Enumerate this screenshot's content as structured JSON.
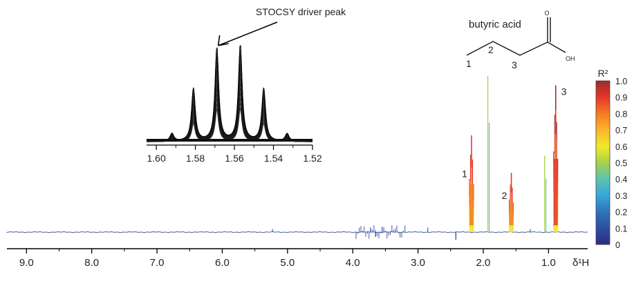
{
  "chart_data": [
    {
      "type": "line",
      "subtype": "nmr-spectrum-stocsy",
      "xlabel": "δ¹H",
      "x_reversed": true,
      "xlim": [
        9.3,
        0.4
      ],
      "x_ticks": [
        9.0,
        8.0,
        7.0,
        6.0,
        5.0,
        4.0,
        3.0,
        2.0,
        1.0
      ],
      "x_tick_labels": [
        "9.0",
        "8.0",
        "7.0",
        "6.0",
        "5.0",
        "4.0",
        "3.0",
        "2.0",
        "1.0"
      ],
      "grid": false,
      "peaks": [
        {
          "label": "1",
          "ppm": 2.18,
          "height": 0.62,
          "r2": 0.92
        },
        {
          "label": "",
          "ppm": 1.93,
          "height": 1.0,
          "r2": 0.45
        },
        {
          "label": "2",
          "ppm": 1.57,
          "height": 0.38,
          "r2": 0.92
        },
        {
          "label": "",
          "ppm": 1.06,
          "height": 0.49,
          "r2": 0.5
        },
        {
          "label": "3",
          "ppm": 0.89,
          "height": 0.94,
          "r2": 0.95
        }
      ],
      "baseline_features": [
        {
          "ppm": 5.23,
          "height": 0.02
        },
        {
          "ppm": 3.73,
          "height": 0.03
        },
        {
          "ppm": 3.65,
          "height": -0.03
        },
        {
          "ppm": 3.55,
          "height": 0.025
        },
        {
          "ppm": 2.85,
          "height": 0.03
        },
        {
          "ppm": 2.42,
          "height": -0.05
        },
        {
          "ppm": 1.28,
          "height": 0.02
        }
      ]
    },
    {
      "type": "line",
      "subtype": "nmr-inset-multiplet",
      "annotation": "STOCSY driver peak",
      "x_reversed": true,
      "xlim": [
        1.605,
        1.52
      ],
      "x_ticks": [
        1.6,
        1.58,
        1.56,
        1.54,
        1.52
      ],
      "x_tick_labels": [
        "1.60",
        "1.58",
        "1.56",
        "1.54",
        "1.52"
      ],
      "grid": false,
      "peaks": [
        {
          "ppm": 1.592,
          "height": 0.08
        },
        {
          "ppm": 1.581,
          "height": 0.55
        },
        {
          "ppm": 1.569,
          "height": 0.97
        },
        {
          "ppm": 1.557,
          "height": 1.0
        },
        {
          "ppm": 1.545,
          "height": 0.55
        },
        {
          "ppm": 1.533,
          "height": 0.08
        }
      ],
      "driver_peak_ppm": 1.569
    }
  ],
  "colorbar": {
    "label": "R²",
    "range": [
      0,
      1.0
    ],
    "ticks": [
      "1.0",
      "0.9",
      "0.8",
      "0.7",
      "0.6",
      "0.5",
      "0.4",
      "0.3",
      "0.2",
      "0.1",
      "0"
    ],
    "colors": [
      "#2b2e82",
      "#2f4ea0",
      "#2f73b7",
      "#36a7d8",
      "#5cc4b0",
      "#a8d149",
      "#f1ea2a",
      "#fbb52a",
      "#f57b23",
      "#e5362a",
      "#9c2a2b"
    ]
  },
  "molecule": {
    "name": "butyric acid",
    "carbon_labels": [
      "1",
      "2",
      "3"
    ],
    "atom_o": "O",
    "atom_oh": "OH"
  }
}
